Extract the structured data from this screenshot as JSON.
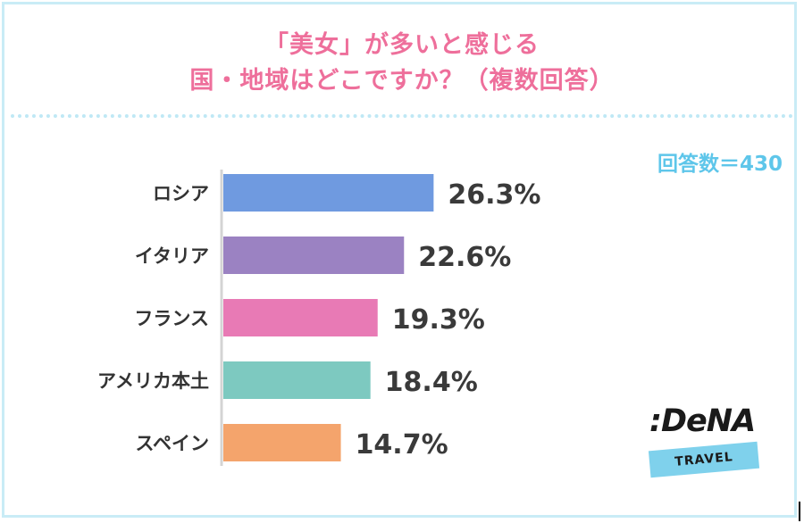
{
  "title_line1": "「美女」が多いと感じる",
  "title_line2": "国・地域はどこですか？（複数回答）",
  "respondents": "回答数＝430",
  "logo": {
    "main": ":DeNA",
    "sub": "TRAVEL"
  },
  "colors": {
    "title": "#ee6f9b",
    "count": "#5ec6ea",
    "frame": "#c9ecf6"
  },
  "chart_data": {
    "type": "bar",
    "orientation": "horizontal",
    "categories": [
      "ロシア",
      "イタリア",
      "フランス",
      "アメリカ本土",
      "スペイン"
    ],
    "values": [
      26.3,
      22.6,
      19.3,
      18.4,
      14.7
    ],
    "value_labels": [
      "26.3%",
      "22.6%",
      "19.3%",
      "18.4%",
      "14.7%"
    ],
    "bar_colors": [
      "#6f9ae0",
      "#9b82c2",
      "#e87ab5",
      "#7dc9c0",
      "#f4a46c"
    ],
    "title": "「美女」が多いと感じる国・地域はどこですか？（複数回答）",
    "xlabel": "",
    "ylabel": "",
    "grid": false,
    "legend": "none"
  }
}
